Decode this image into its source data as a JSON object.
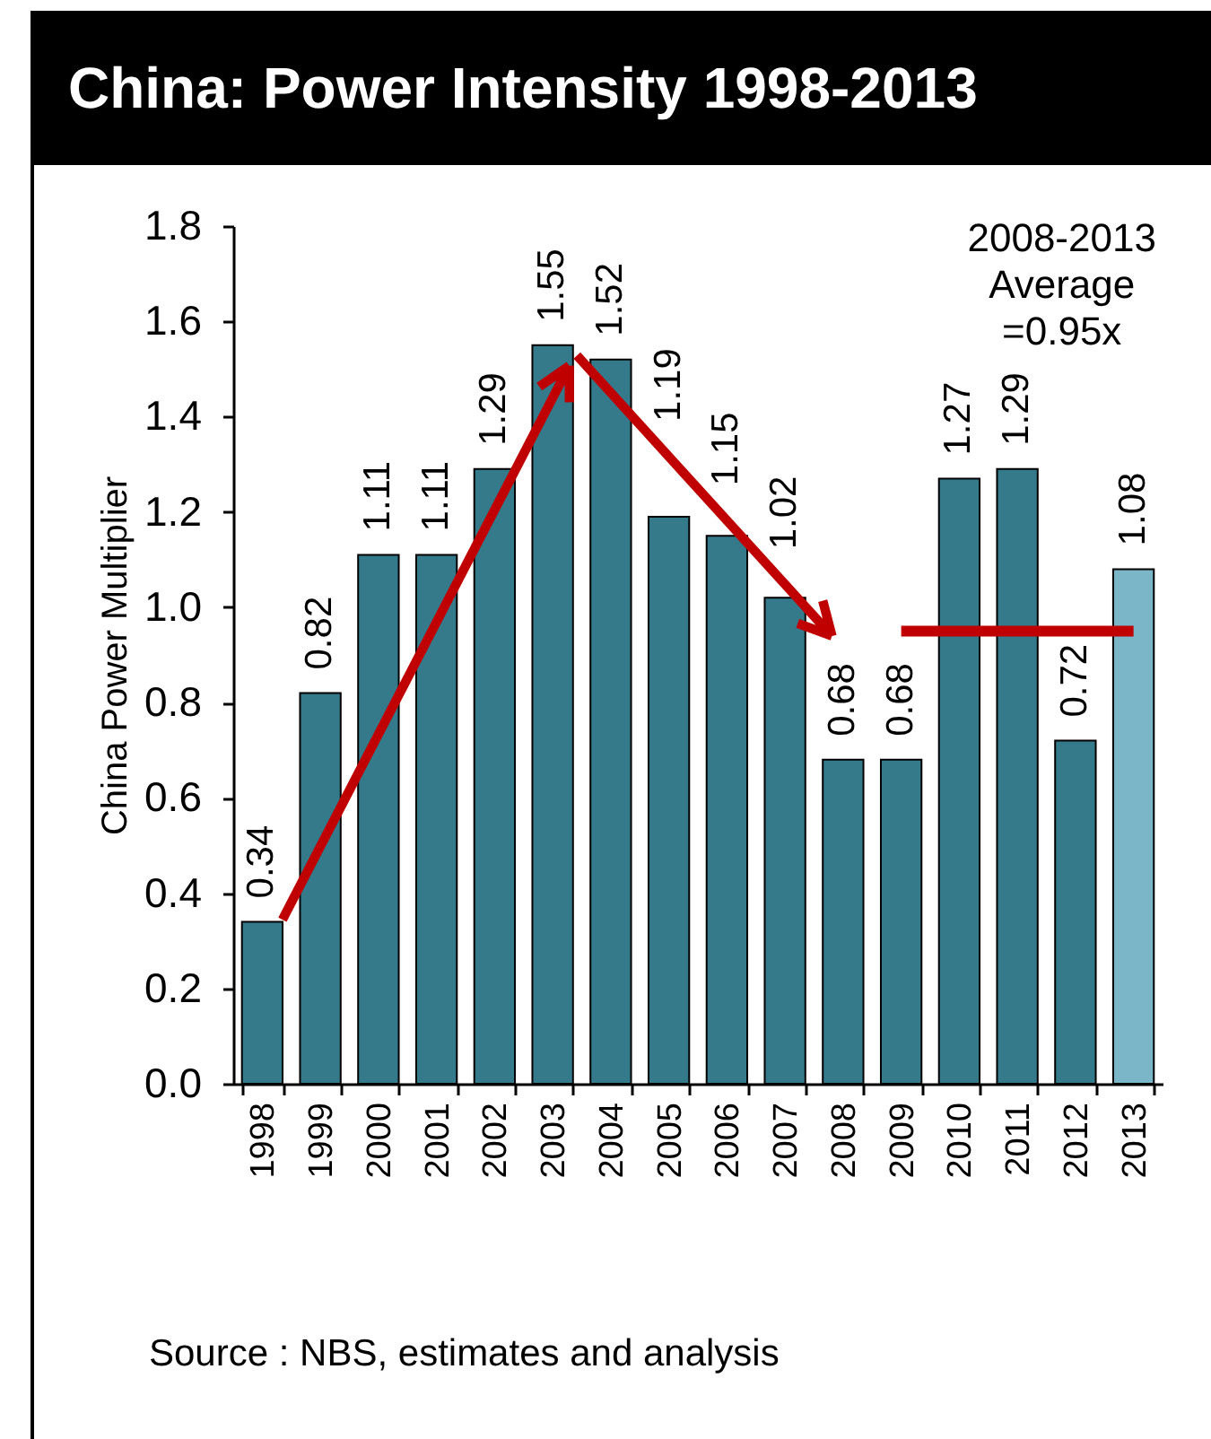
{
  "chart_data": {
    "type": "bar",
    "title": "China: Power Intensity 1998-2013",
    "ylabel": "China Power Multiplier",
    "categories": [
      "1998",
      "1999",
      "2000",
      "2001",
      "2002",
      "2003",
      "2004",
      "2005",
      "2006",
      "2007",
      "2008",
      "2009",
      "2010",
      "2011",
      "2012",
      "2013"
    ],
    "series": [
      {
        "values": [
          0.34,
          0.82,
          1.11,
          1.11,
          1.29,
          1.55,
          1.52,
          1.19,
          1.15,
          1.02,
          0.68,
          0.68,
          1.27,
          1.29,
          0.72,
          1.08
        ],
        "colors": [
          "#347a8b",
          "#347a8b",
          "#347a8b",
          "#347a8b",
          "#347a8b",
          "#347a8b",
          "#347a8b",
          "#347a8b",
          "#347a8b",
          "#347a8b",
          "#347a8b",
          "#347a8b",
          "#347a8b",
          "#347a8b",
          "#347a8b",
          "#7ab5c8"
        ],
        "value_labels": [
          "0.34",
          "0.82",
          "1.11",
          "1.11",
          "1.29",
          "1.55",
          "1.52",
          "1.19",
          "1.15",
          "1.02",
          "0.68",
          "0.68",
          "1.27",
          "1.29",
          "0.72",
          "1.08"
        ]
      },
      {
        "type": "line",
        "color": "#c00000",
        "values": [
          null,
          null,
          null,
          null,
          null,
          null,
          null,
          null,
          null,
          null,
          null,
          0.95,
          0.95,
          0.95,
          0.95,
          0.95
        ]
      }
    ],
    "ylim": [
      0,
      1.8
    ],
    "yticks": [
      {
        "value": 0,
        "label": "0.0"
      },
      0.2,
      0.4,
      0.6,
      0.8,
      {
        "value": 1,
        "label": "1.0"
      },
      1.2,
      1.4,
      1.6,
      1.8
    ],
    "annotations": [
      "2008-2013 Average =0.95x",
      "Source : NBS, estimates and analysis"
    ]
  }
}
